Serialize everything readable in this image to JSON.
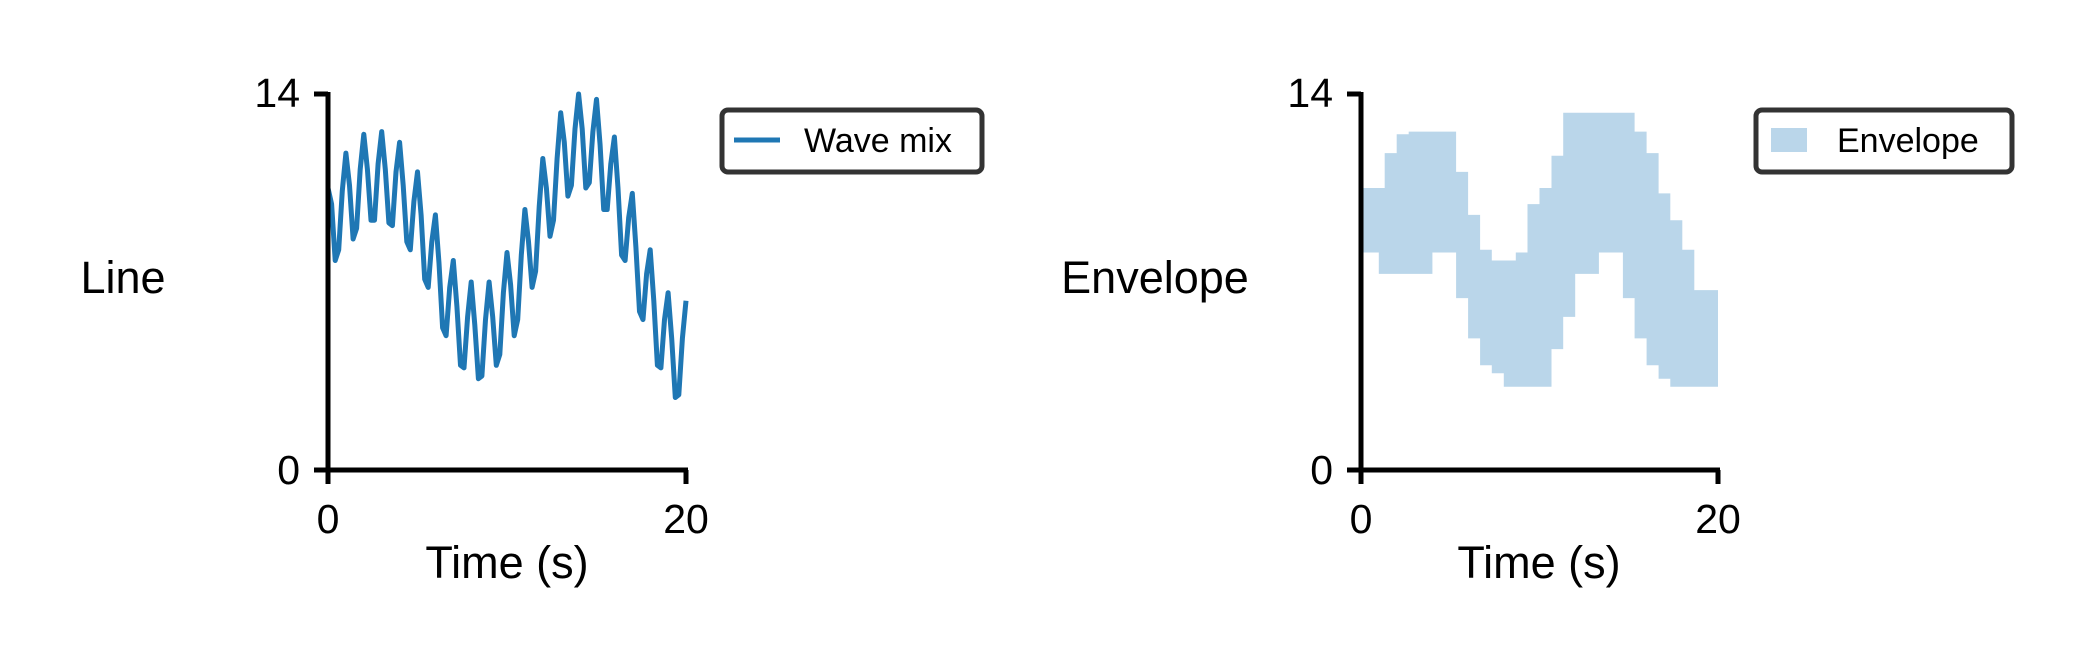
{
  "chart_data": [
    {
      "type": "line",
      "row_label": "Line",
      "xlabel": "Time (s)",
      "ylabel": "",
      "xlim": [
        0,
        20
      ],
      "ylim": [
        0,
        14
      ],
      "xticks": [
        "0",
        "20"
      ],
      "yticks": [
        "0",
        "14"
      ],
      "grid": false,
      "legend": {
        "position": "outside-right-top",
        "entries": [
          "Wave mix"
        ]
      },
      "series": [
        {
          "name": "Wave mix",
          "color": "#1f77b4",
          "x": [
            0,
            0.2,
            0.4,
            0.6,
            0.8,
            1,
            1.2,
            1.4,
            1.6,
            1.8,
            2,
            2.2,
            2.4,
            2.6,
            2.8,
            3,
            3.2,
            3.4,
            3.6,
            3.8,
            4,
            4.2,
            4.4,
            4.6,
            4.8,
            5,
            5.2,
            5.4,
            5.6,
            5.8,
            6,
            6.2,
            6.4,
            6.6,
            6.8,
            7,
            7.2,
            7.4,
            7.6,
            7.8,
            8,
            8.2,
            8.4,
            8.6,
            8.8,
            9,
            9.2,
            9.4,
            9.6,
            9.8,
            10,
            10.2,
            10.4,
            10.6,
            10.8,
            11,
            11.2,
            11.4,
            11.6,
            11.8,
            12,
            12.2,
            12.4,
            12.6,
            12.8,
            13,
            13.2,
            13.4,
            13.6,
            13.8,
            14,
            14.2,
            14.4,
            14.6,
            14.8,
            15,
            15.2,
            15.4,
            15.6,
            15.8,
            16,
            16.2,
            16.4,
            16.6,
            16.8,
            17,
            17.2,
            17.4,
            17.6,
            17.8,
            18,
            18.2,
            18.4,
            18.6,
            18.8,
            19,
            19.2,
            19.4,
            19.6,
            19.8,
            20
          ],
          "y": [
            10.5,
            9.9,
            7.8,
            8.2,
            10.4,
            11.8,
            10.6,
            8.6,
            9.0,
            11.2,
            12.5,
            11.2,
            9.3,
            9.3,
            11.4,
            12.6,
            11.2,
            9.2,
            9.1,
            11.1,
            12.2,
            10.6,
            8.5,
            8.2,
            10.0,
            11.1,
            9.5,
            7.1,
            6.8,
            8.5,
            9.5,
            7.7,
            5.3,
            5.0,
            6.8,
            7.8,
            6.1,
            3.9,
            3.8,
            5.7,
            7.0,
            5.4,
            3.4,
            3.5,
            5.6,
            7.0,
            5.7,
            3.9,
            4.3,
            6.6,
            8.1,
            6.9,
            5.0,
            5.6,
            8.0,
            9.7,
            8.5,
            6.8,
            7.4,
            9.8,
            11.6,
            10.5,
            8.7,
            9.3,
            11.6,
            13.3,
            12.2,
            10.2,
            10.6,
            12.7,
            14.0,
            12.7,
            10.5,
            10.7,
            12.6,
            13.8,
            12.1,
            9.7,
            9.7,
            11.4,
            12.4,
            10.5,
            8.0,
            7.8,
            9.4,
            10.3,
            8.3,
            5.9,
            5.6,
            7.3,
            8.2,
            6.3,
            3.9,
            3.8,
            5.6,
            6.6,
            4.9,
            2.7,
            2.8,
            4.9,
            6.3
          ]
        }
      ]
    },
    {
      "type": "area",
      "row_label": "Envelope",
      "xlabel": "Time (s)",
      "ylabel": "",
      "xlim": [
        0,
        20
      ],
      "ylim": [
        0,
        14
      ],
      "xticks": [
        "0",
        "20"
      ],
      "yticks": [
        "0",
        "14"
      ],
      "grid": false,
      "legend": {
        "position": "outside-right-top",
        "entries": [
          "Envelope"
        ]
      },
      "series": [
        {
          "name": "Envelope",
          "color": "#bad6ea",
          "x": [
            0,
            1,
            1.33,
            2,
            2.67,
            3.33,
            4,
            4.67,
            5.33,
            6,
            6.67,
            7.33,
            8,
            8.67,
            9.33,
            10,
            10.67,
            11.33,
            12,
            12.67,
            13.33,
            14,
            14.67,
            15.33,
            16,
            16.67,
            17.33,
            18,
            18.67,
            19.33,
            20
          ],
          "upper": [
            10.5,
            10.5,
            11.8,
            12.5,
            12.6,
            12.6,
            12.6,
            12.6,
            11.1,
            9.5,
            8.2,
            7.8,
            7.8,
            8.1,
            9.9,
            10.5,
            11.7,
            13.3,
            13.3,
            13.3,
            13.3,
            13.3,
            13.3,
            12.6,
            11.8,
            10.3,
            9.3,
            8.2,
            6.7,
            6.7,
            8.8
          ],
          "lower": [
            8.1,
            7.3,
            7.3,
            7.3,
            7.3,
            7.3,
            8.1,
            8.1,
            6.4,
            4.9,
            3.9,
            3.6,
            3.1,
            3.1,
            3.1,
            3.1,
            4.5,
            5.7,
            7.3,
            7.3,
            8.1,
            8.1,
            6.4,
            4.9,
            3.9,
            3.4,
            3.1,
            3.1,
            3.1,
            3.1,
            3.1
          ]
        }
      ]
    }
  ]
}
